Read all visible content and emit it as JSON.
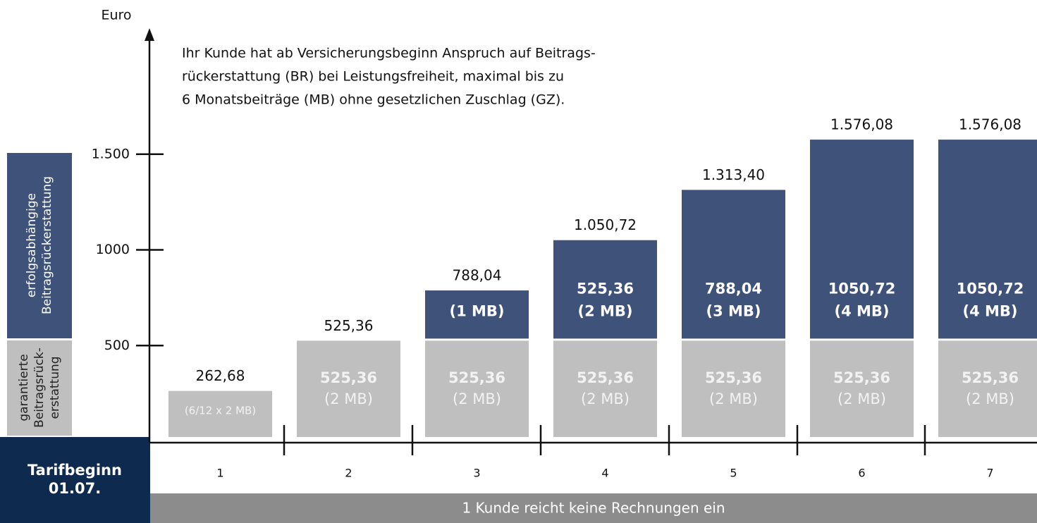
{
  "chart_data": {
    "type": "stacked_bar",
    "y_label": "Euro",
    "annotation": [
      "Ihr Kunde hat ab Versicherungsbeginn Anspruch auf Beitrags-",
      "rückerstattung (BR) bei Leistungsfreiheit, maximal bis zu",
      "6 Monatsbeiträge (MB) ohne gesetzlichen Zuschlag (GZ)."
    ],
    "categories": [
      "1",
      "2",
      "3",
      "4",
      "5",
      "6",
      "7"
    ],
    "series": [
      {
        "name": [
          "garantierte",
          "Beitragsrück-",
          "erstattung"
        ],
        "color": "#bfbfbf",
        "values": [
          262.68,
          525.36,
          525.36,
          525.36,
          525.36,
          525.36,
          525.36
        ],
        "value_labels": [
          null,
          "525,36",
          "525,36",
          "525,36",
          "525,36",
          "525,36",
          "525,36"
        ],
        "unit_labels": [
          "(6/12 x 2 MB)",
          "(2 MB)",
          "(2 MB)",
          "(2 MB)",
          "(2 MB)",
          "(2 MB)",
          "(2 MB)"
        ]
      },
      {
        "name": [
          "erfolgsabhängige",
          "Beitragsrückerstattung"
        ],
        "color": "#3f5279",
        "values": [
          null,
          null,
          262.68,
          525.36,
          788.04,
          1050.72,
          1050.72
        ],
        "value_labels": [
          null,
          null,
          null,
          "525,36",
          "788,04",
          "1050,72",
          "1050,72"
        ],
        "unit_labels": [
          null,
          null,
          "(1 MB)",
          "(2 MB)",
          "(3 MB)",
          "(4 MB)",
          "(4 MB)"
        ]
      }
    ],
    "totals": [
      262.68,
      525.36,
      788.04,
      1050.72,
      1313.4,
      1576.08,
      1576.08
    ],
    "total_labels": [
      "262,68",
      "525,36",
      "788,04",
      "1.050,72",
      "1.313,40",
      "1.576,08",
      "1.576,08"
    ],
    "ylim": [
      0,
      2140
    ],
    "yticks": [
      500,
      1000,
      {
        "value": 1500,
        "label": "1.500"
      }
    ],
    "start_label": [
      "Tarifbeginn",
      "01.07."
    ],
    "footer": "1 Kunde reicht keine Rechnungen ein"
  }
}
